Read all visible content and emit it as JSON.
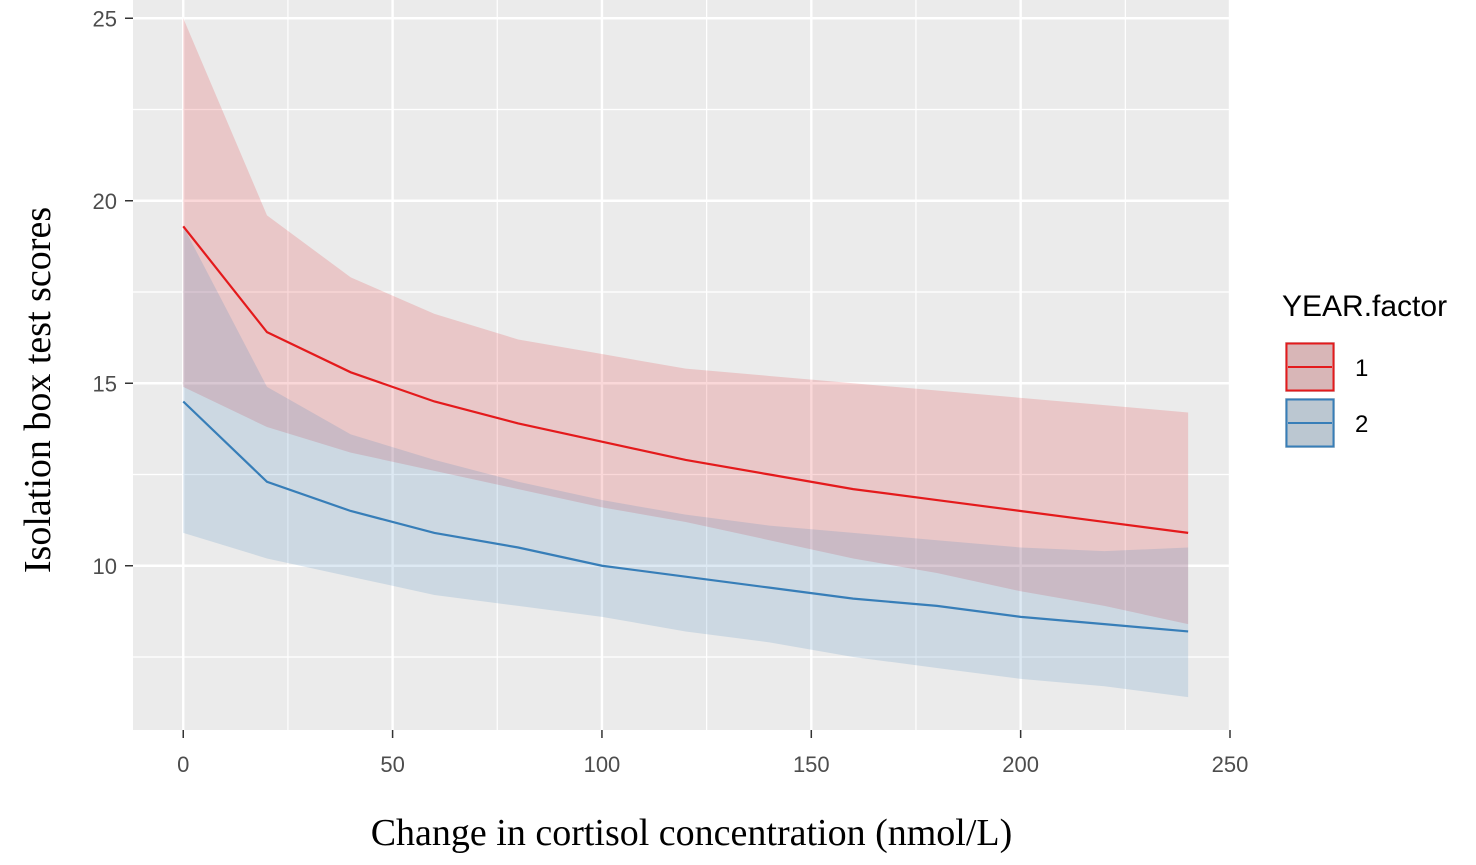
{
  "chart_data": {
    "type": "line",
    "title": "",
    "xlabel": "Change in cortisol concentration (nmol/L)",
    "ylabel": "Isolation box test scores",
    "xlim": [
      -12,
      250
    ],
    "ylim": [
      5.5,
      25.5
    ],
    "x_ticks": [
      0,
      50,
      100,
      150,
      200,
      250
    ],
    "x_tick_labels": [
      "0",
      "50",
      "100",
      "150",
      "200",
      "250"
    ],
    "y_ticks": [
      10,
      15,
      20,
      25
    ],
    "y_tick_labels": [
      "10",
      "15",
      "20",
      "25"
    ],
    "x_minor_ticks": [
      25,
      75,
      125,
      175,
      225
    ],
    "y_minor_ticks": [
      7.5,
      12.5,
      17.5,
      22.5
    ],
    "grid": true,
    "legend": {
      "title": "YEAR.factor",
      "position": "right"
    },
    "x": [
      0,
      20,
      40,
      60,
      80,
      100,
      120,
      140,
      160,
      180,
      200,
      220,
      240
    ],
    "series": [
      {
        "name": "1",
        "color": "#e41a1c",
        "fill": "#e41a1c",
        "values": [
          19.3,
          16.4,
          15.3,
          14.5,
          13.9,
          13.4,
          12.9,
          12.5,
          12.1,
          11.8,
          11.5,
          11.2,
          10.9
        ],
        "lower": [
          14.9,
          13.8,
          13.1,
          12.6,
          12.1,
          11.6,
          11.2,
          10.7,
          10.2,
          9.8,
          9.3,
          8.9,
          8.4
        ],
        "upper": [
          25.0,
          19.6,
          17.9,
          16.9,
          16.2,
          15.8,
          15.4,
          15.2,
          15.0,
          14.8,
          14.6,
          14.4,
          14.2
        ]
      },
      {
        "name": "2",
        "color": "#377eb8",
        "fill": "#377eb8",
        "values": [
          14.5,
          12.3,
          11.5,
          10.9,
          10.5,
          10.0,
          9.7,
          9.4,
          9.1,
          8.9,
          8.6,
          8.4,
          8.2
        ],
        "lower": [
          10.9,
          10.2,
          9.7,
          9.2,
          8.9,
          8.6,
          8.2,
          7.9,
          7.5,
          7.2,
          6.9,
          6.7,
          6.4
        ],
        "upper": [
          19.3,
          14.9,
          13.6,
          12.9,
          12.3,
          11.8,
          11.4,
          11.1,
          10.9,
          10.7,
          10.5,
          10.4,
          10.5
        ]
      }
    ]
  }
}
